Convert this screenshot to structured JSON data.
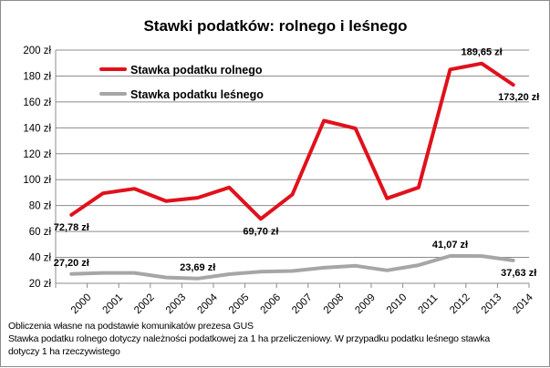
{
  "chart_data": {
    "type": "line",
    "title": "Stawki podatków: rolnego i leśnego",
    "categories": [
      "2000",
      "2001",
      "2002",
      "2003",
      "2004",
      "2005",
      "2006",
      "2007",
      "2008",
      "2009",
      "2010",
      "2011",
      "2012",
      "2013",
      "2014"
    ],
    "y_tick_labels": [
      "20 zł",
      "40 zł",
      "60 zł",
      "80 zł",
      "100 zł",
      "120 zł",
      "140 zł",
      "160 zł",
      "180 zł",
      "200 zł"
    ],
    "y_ticks": [
      20,
      40,
      60,
      80,
      100,
      120,
      140,
      160,
      180,
      200
    ],
    "ylim": [
      20,
      200
    ],
    "grid": true,
    "legend_position": "top-left",
    "series": [
      {
        "name": "Stawka podatku rolnego",
        "color": "#e0111b",
        "values": [
          72.78,
          89.5,
          93.0,
          83.5,
          86.0,
          94.0,
          69.7,
          88.5,
          145.5,
          139.5,
          85.5,
          94.0,
          185.0,
          189.65,
          173.2
        ]
      },
      {
        "name": "Stawka podatku leśnego",
        "color": "#a6a6a6",
        "values": [
          27.2,
          28.0,
          28.0,
          24.5,
          23.69,
          27.0,
          29.0,
          29.5,
          32.0,
          33.5,
          30.0,
          34.0,
          41.07,
          41.0,
          37.63
        ]
      }
    ],
    "data_labels": [
      {
        "series": 0,
        "index": 0,
        "text": "72,78 zł",
        "placement": "below"
      },
      {
        "series": 0,
        "index": 6,
        "text": "69,70 zł",
        "placement": "below"
      },
      {
        "series": 0,
        "index": 13,
        "text": "189,65 zł",
        "placement": "above"
      },
      {
        "series": 0,
        "index": 14,
        "text": "173,20 zł",
        "placement": "below"
      },
      {
        "series": 1,
        "index": 0,
        "text": "27,20 zł",
        "placement": "above"
      },
      {
        "series": 1,
        "index": 4,
        "text": "23,69 zł",
        "placement": "above"
      },
      {
        "series": 1,
        "index": 12,
        "text": "41,07 zł",
        "placement": "above"
      },
      {
        "series": 1,
        "index": 14,
        "text": "37,63 zł",
        "placement": "below"
      }
    ]
  },
  "footnotes": [
    "Obliczenia własne na podstawie komunikatów prezesa GUS",
    "Stawka podatku rolnego dotyczy należności podatkowej za 1 ha przeliczeniowy. W przypadku podatku leśnego stawka",
    "dotyczy 1 ha rzeczywistego"
  ]
}
